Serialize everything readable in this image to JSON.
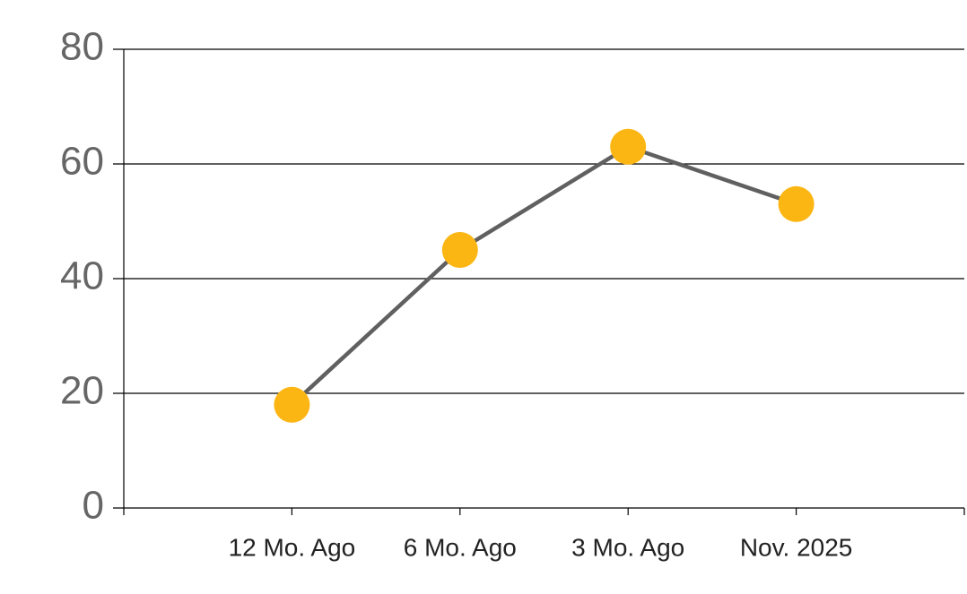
{
  "chart_data": {
    "type": "line",
    "categories": [
      "12 Mo. Ago",
      "6 Mo. Ago",
      "3 Mo. Ago",
      "Nov. 2025"
    ],
    "series": [
      {
        "values": [
          18,
          45,
          63,
          53
        ],
        "color": "#fbb614",
        "line_color": "#606060"
      }
    ],
    "ylim": [
      0,
      80
    ],
    "yticks": [
      0,
      20,
      40,
      60,
      80
    ],
    "grid": true
  }
}
